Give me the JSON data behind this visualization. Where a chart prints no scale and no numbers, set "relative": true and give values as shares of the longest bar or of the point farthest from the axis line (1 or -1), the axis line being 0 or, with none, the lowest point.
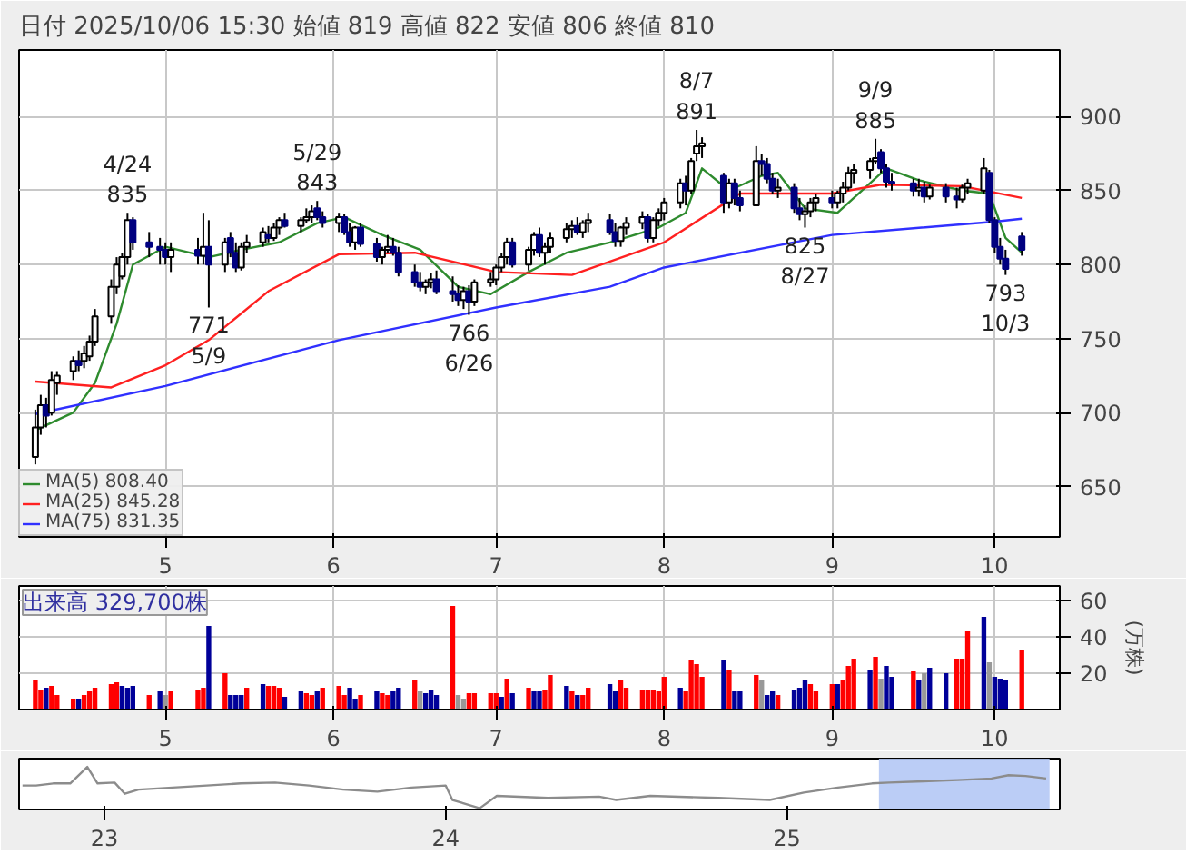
{
  "chart_data": [
    {
      "type": "candlestick",
      "title": "日付 2025/10/06 15:30 始値 819 高値 822 安値 806 終値 810",
      "x": [
        "2025-04-07",
        "2025-04-08",
        "2025-04-09",
        "2025-04-10",
        "2025-04-11",
        "2025-04-14",
        "2025-04-15",
        "2025-04-16",
        "2025-04-17",
        "2025-04-18",
        "2025-04-21",
        "2025-04-22",
        "2025-04-23",
        "2025-04-24",
        "2025-04-25",
        "2025-04-28",
        "2025-04-30",
        "2025-05-01",
        "2025-05-02",
        "2025-05-07",
        "2025-05-08",
        "2025-05-09",
        "2025-05-12",
        "2025-05-13",
        "2025-05-14",
        "2025-05-15",
        "2025-05-16",
        "2025-05-19",
        "2025-05-20",
        "2025-05-21",
        "2025-05-22",
        "2025-05-23",
        "2025-05-26",
        "2025-05-27",
        "2025-05-28",
        "2025-05-29",
        "2025-05-30",
        "2025-06-02",
        "2025-06-03",
        "2025-06-04",
        "2025-06-05",
        "2025-06-06",
        "2025-06-09",
        "2025-06-10",
        "2025-06-11",
        "2025-06-12",
        "2025-06-13",
        "2025-06-16",
        "2025-06-17",
        "2025-06-18",
        "2025-06-19",
        "2025-06-20",
        "2025-06-23",
        "2025-06-24",
        "2025-06-25",
        "2025-06-26",
        "2025-06-27",
        "2025-06-30",
        "2025-07-01",
        "2025-07-02",
        "2025-07-03",
        "2025-07-04",
        "2025-07-07",
        "2025-07-08",
        "2025-07-09",
        "2025-07-10",
        "2025-07-11",
        "2025-07-14",
        "2025-07-15",
        "2025-07-16",
        "2025-07-17",
        "2025-07-18",
        "2025-07-22",
        "2025-07-23",
        "2025-07-24",
        "2025-07-25",
        "2025-07-28",
        "2025-07-29",
        "2025-07-30",
        "2025-07-31",
        "2025-08-01",
        "2025-08-04",
        "2025-08-05",
        "2025-08-06",
        "2025-08-07",
        "2025-08-08",
        "2025-08-12",
        "2025-08-13",
        "2025-08-14",
        "2025-08-15",
        "2025-08-18",
        "2025-08-19",
        "2025-08-20",
        "2025-08-21",
        "2025-08-22",
        "2025-08-25",
        "2025-08-26",
        "2025-08-27",
        "2025-08-28",
        "2025-08-29",
        "2025-09-01",
        "2025-09-02",
        "2025-09-03",
        "2025-09-04",
        "2025-09-05",
        "2025-09-08",
        "2025-09-09",
        "2025-09-10",
        "2025-09-11",
        "2025-09-12",
        "2025-09-16",
        "2025-09-17",
        "2025-09-18",
        "2025-09-19",
        "2025-09-22",
        "2025-09-24",
        "2025-09-25",
        "2025-09-26",
        "2025-09-29",
        "2025-09-30",
        "2025-10-01",
        "2025-10-02",
        "2025-10-03",
        "2025-10-06"
      ],
      "ohlc": [
        [
          670,
          702,
          665,
          690
        ],
        [
          690,
          712,
          685,
          705
        ],
        [
          705,
          710,
          690,
          698
        ],
        [
          700,
          728,
          698,
          722
        ],
        [
          720,
          728,
          712,
          725
        ],
        [
          728,
          738,
          722,
          735
        ],
        [
          735,
          742,
          728,
          732
        ],
        [
          735,
          745,
          730,
          740
        ],
        [
          738,
          752,
          735,
          748
        ],
        [
          748,
          770,
          745,
          765
        ],
        [
          765,
          790,
          760,
          785
        ],
        [
          785,
          805,
          780,
          800
        ],
        [
          792,
          808,
          790,
          805
        ],
        [
          805,
          835,
          800,
          830
        ],
        [
          830,
          832,
          810,
          815
        ],
        [
          815,
          822,
          805,
          812
        ],
        [
          812,
          818,
          800,
          810
        ],
        [
          810,
          815,
          800,
          805
        ],
        [
          805,
          815,
          795,
          810
        ],
        [
          810,
          818,
          800,
          806
        ],
        [
          806,
          835,
          800,
          812
        ],
        [
          812,
          830,
          771,
          800
        ],
        [
          800,
          818,
          795,
          815
        ],
        [
          818,
          822,
          805,
          808
        ],
        [
          808,
          815,
          795,
          798
        ],
        [
          798,
          815,
          796,
          812
        ],
        [
          812,
          820,
          808,
          815
        ],
        [
          815,
          825,
          812,
          822
        ],
        [
          820,
          826,
          815,
          818
        ],
        [
          818,
          828,
          816,
          825
        ],
        [
          825,
          832,
          820,
          830
        ],
        [
          830,
          835,
          825,
          826
        ],
        [
          826,
          832,
          822,
          830
        ],
        [
          830,
          838,
          828,
          832
        ],
        [
          832,
          840,
          828,
          836
        ],
        [
          838,
          843,
          830,
          832
        ],
        [
          832,
          836,
          825,
          828
        ],
        [
          828,
          835,
          822,
          832
        ],
        [
          832,
          834,
          820,
          822
        ],
        [
          822,
          828,
          812,
          815
        ],
        [
          815,
          826,
          810,
          825
        ],
        [
          825,
          828,
          812,
          814
        ],
        [
          814,
          818,
          802,
          805
        ],
        [
          805,
          812,
          800,
          810
        ],
        [
          810,
          820,
          808,
          812
        ],
        [
          812,
          818,
          806,
          808
        ],
        [
          808,
          812,
          792,
          795
        ],
        [
          795,
          800,
          785,
          788
        ],
        [
          788,
          795,
          782,
          785
        ],
        [
          785,
          790,
          780,
          788
        ],
        [
          788,
          794,
          784,
          790
        ],
        [
          790,
          796,
          780,
          782
        ],
        [
          782,
          792,
          775,
          780
        ],
        [
          780,
          786,
          772,
          776
        ],
        [
          776,
          785,
          770,
          782
        ],
        [
          782,
          786,
          766,
          775
        ],
        [
          775,
          790,
          772,
          788
        ],
        [
          788,
          795,
          785,
          790
        ],
        [
          790,
          800,
          786,
          798
        ],
        [
          798,
          808,
          795,
          805
        ],
        [
          805,
          818,
          800,
          815
        ],
        [
          815,
          818,
          798,
          800
        ],
        [
          800,
          812,
          796,
          810
        ],
        [
          810,
          822,
          806,
          820
        ],
        [
          820,
          825,
          805,
          808
        ],
        [
          808,
          815,
          800,
          812
        ],
        [
          812,
          822,
          808,
          818
        ],
        [
          818,
          828,
          815,
          824
        ],
        [
          824,
          830,
          818,
          826
        ],
        [
          826,
          832,
          820,
          822
        ],
        [
          822,
          830,
          818,
          828
        ],
        [
          828,
          835,
          822,
          830
        ],
        [
          830,
          834,
          820,
          822
        ],
        [
          822,
          828,
          812,
          816
        ],
        [
          816,
          826,
          812,
          825
        ],
        [
          825,
          832,
          820,
          828
        ],
        [
          828,
          836,
          824,
          832
        ],
        [
          832,
          834,
          815,
          818
        ],
        [
          818,
          832,
          815,
          830
        ],
        [
          830,
          838,
          826,
          835
        ],
        [
          835,
          845,
          830,
          842
        ],
        [
          842,
          858,
          838,
          855
        ],
        [
          855,
          860,
          840,
          850
        ],
        [
          850,
          872,
          848,
          870
        ],
        [
          875,
          891,
          870,
          880
        ],
        [
          880,
          886,
          872,
          882
        ],
        [
          860,
          862,
          835,
          842
        ],
        [
          842,
          858,
          838,
          855
        ],
        [
          855,
          858,
          840,
          845
        ],
        [
          845,
          850,
          836,
          840
        ],
        [
          840,
          880,
          840,
          870
        ],
        [
          870,
          875,
          860,
          868
        ],
        [
          868,
          872,
          855,
          858
        ],
        [
          858,
          862,
          848,
          850
        ],
        [
          850,
          858,
          845,
          852
        ],
        [
          852,
          855,
          835,
          838
        ],
        [
          838,
          845,
          830,
          834
        ],
        [
          834,
          840,
          825,
          836
        ],
        [
          836,
          845,
          832,
          842
        ],
        [
          842,
          848,
          836,
          845
        ],
        [
          845,
          850,
          838,
          842
        ],
        [
          842,
          850,
          838,
          848
        ],
        [
          848,
          856,
          842,
          852
        ],
        [
          852,
          866,
          850,
          862
        ],
        [
          862,
          868,
          855,
          864
        ],
        [
          864,
          872,
          858,
          870
        ],
        [
          870,
          885,
          868,
          872
        ],
        [
          876,
          878,
          862,
          865
        ],
        [
          865,
          868,
          852,
          856
        ],
        [
          856,
          862,
          850,
          855
        ],
        [
          855,
          858,
          846,
          850
        ],
        [
          850,
          858,
          846,
          852
        ],
        [
          852,
          856,
          842,
          846
        ],
        [
          846,
          854,
          844,
          852
        ],
        [
          852,
          855,
          842,
          846
        ],
        [
          846,
          852,
          838,
          844
        ],
        [
          844,
          854,
          842,
          852
        ],
        [
          852,
          858,
          848,
          855
        ],
        [
          850,
          872,
          848,
          865
        ],
        [
          862,
          864,
          828,
          830
        ],
        [
          830,
          832,
          808,
          812
        ],
        [
          812,
          818,
          800,
          804
        ],
        [
          804,
          810,
          793,
          797
        ],
        [
          819,
          822,
          806,
          810
        ]
      ],
      "series": [
        {
          "type": "line",
          "name": "MA(5) 808.40",
          "color": "#2e8b2e",
          "x": [
            "2025-04-07",
            "2025-04-14",
            "2025-04-18",
            "2025-04-22",
            "2025-04-25",
            "2025-05-01",
            "2025-05-09",
            "2025-05-15",
            "2025-05-22",
            "2025-05-29",
            "2025-06-03",
            "2025-06-10",
            "2025-06-17",
            "2025-06-24",
            "2025-06-30",
            "2025-07-07",
            "2025-07-14",
            "2025-07-22",
            "2025-07-31",
            "2025-08-05",
            "2025-08-08",
            "2025-08-13",
            "2025-08-19",
            "2025-08-22",
            "2025-08-27",
            "2025-09-02",
            "2025-09-08",
            "2025-09-11",
            "2025-09-17",
            "2025-09-25",
            "2025-09-30",
            "2025-10-03",
            "2025-10-06"
          ],
          "values": [
            688,
            700,
            720,
            760,
            800,
            812,
            805,
            810,
            815,
            828,
            832,
            820,
            810,
            785,
            780,
            795,
            808,
            815,
            825,
            835,
            865,
            850,
            860,
            862,
            838,
            835,
            855,
            865,
            857,
            850,
            848,
            818,
            808
          ]
        },
        {
          "type": "line",
          "name": "MA(25) 845.28",
          "color": "#ff2020",
          "x": [
            "2025-04-07",
            "2025-04-21",
            "2025-05-01",
            "2025-05-09",
            "2025-05-20",
            "2025-06-02",
            "2025-06-16",
            "2025-07-01",
            "2025-07-15",
            "2025-08-01",
            "2025-08-15",
            "2025-09-01",
            "2025-09-10",
            "2025-09-25",
            "2025-10-06"
          ],
          "values": [
            721,
            717,
            732,
            749,
            782,
            807,
            808,
            795,
            793,
            815,
            848,
            848,
            854,
            853,
            845
          ]
        },
        {
          "type": "line",
          "name": "MA(75) 831.35",
          "color": "#3030ff",
          "x": [
            "2025-04-07",
            "2025-05-01",
            "2025-06-02",
            "2025-07-01",
            "2025-07-22",
            "2025-08-01",
            "2025-09-01",
            "2025-10-01",
            "2025-10-06"
          ],
          "values": [
            699,
            718,
            749,
            771,
            785,
            798,
            820,
            829,
            831
          ]
        }
      ],
      "annotations": [
        {
          "text": "4/24\n835",
          "x": "2025-04-24",
          "y": 835
        },
        {
          "text": "771\n5/9",
          "x": "2025-05-09",
          "y": 771
        },
        {
          "text": "5/29\n843",
          "x": "2025-05-29",
          "y": 843
        },
        {
          "text": "766\n6/26",
          "x": "2025-06-26",
          "y": 766
        },
        {
          "text": "8/7\n891",
          "x": "2025-08-07",
          "y": 891
        },
        {
          "text": "825\n8/27",
          "x": "2025-08-27",
          "y": 825
        },
        {
          "text": "9/9\n885",
          "x": "2025-09-09",
          "y": 885
        },
        {
          "text": "793\n10/3",
          "x": "2025-10-03",
          "y": 793
        }
      ],
      "xlim": [
        "2025-04-04",
        "2025-10-13"
      ],
      "xticks": [
        {
          "value": "2025-05-01",
          "label": "5"
        },
        {
          "value": "2025-06-01",
          "label": "6"
        },
        {
          "value": "2025-07-01",
          "label": "7"
        },
        {
          "value": "2025-08-01",
          "label": "8"
        },
        {
          "value": "2025-09-01",
          "label": "9"
        },
        {
          "value": "2025-10-01",
          "label": "10"
        }
      ],
      "ylim": [
        616,
        945
      ],
      "yticks": [
        650,
        700,
        750,
        800,
        850,
        900
      ],
      "grid": true,
      "legend": "bottom left"
    },
    {
      "type": "bar",
      "title": "出来高 329,700株",
      "ylabel": "(万株)",
      "x": [
        "2025-04-07",
        "2025-04-08",
        "2025-04-09",
        "2025-04-10",
        "2025-04-11",
        "2025-04-14",
        "2025-04-15",
        "2025-04-16",
        "2025-04-17",
        "2025-04-18",
        "2025-04-21",
        "2025-04-22",
        "2025-04-23",
        "2025-04-24",
        "2025-04-25",
        "2025-04-28",
        "2025-04-30",
        "2025-05-01",
        "2025-05-02",
        "2025-05-07",
        "2025-05-08",
        "2025-05-09",
        "2025-05-12",
        "2025-05-13",
        "2025-05-14",
        "2025-05-15",
        "2025-05-16",
        "2025-05-19",
        "2025-05-20",
        "2025-05-21",
        "2025-05-22",
        "2025-05-23",
        "2025-05-26",
        "2025-05-27",
        "2025-05-28",
        "2025-05-29",
        "2025-05-30",
        "2025-06-02",
        "2025-06-03",
        "2025-06-04",
        "2025-06-05",
        "2025-06-06",
        "2025-06-09",
        "2025-06-10",
        "2025-06-11",
        "2025-06-12",
        "2025-06-13",
        "2025-06-16",
        "2025-06-17",
        "2025-06-18",
        "2025-06-19",
        "2025-06-20",
        "2025-06-23",
        "2025-06-24",
        "2025-06-25",
        "2025-06-26",
        "2025-06-27",
        "2025-06-30",
        "2025-07-01",
        "2025-07-02",
        "2025-07-03",
        "2025-07-04",
        "2025-07-07",
        "2025-07-08",
        "2025-07-09",
        "2025-07-10",
        "2025-07-11",
        "2025-07-14",
        "2025-07-15",
        "2025-07-16",
        "2025-07-17",
        "2025-07-18",
        "2025-07-22",
        "2025-07-23",
        "2025-07-24",
        "2025-07-25",
        "2025-07-28",
        "2025-07-29",
        "2025-07-30",
        "2025-07-31",
        "2025-08-01",
        "2025-08-04",
        "2025-08-05",
        "2025-08-06",
        "2025-08-07",
        "2025-08-08",
        "2025-08-12",
        "2025-08-13",
        "2025-08-14",
        "2025-08-15",
        "2025-08-18",
        "2025-08-19",
        "2025-08-20",
        "2025-08-21",
        "2025-08-22",
        "2025-08-25",
        "2025-08-26",
        "2025-08-27",
        "2025-08-28",
        "2025-08-29",
        "2025-09-01",
        "2025-09-02",
        "2025-09-03",
        "2025-09-04",
        "2025-09-05",
        "2025-09-08",
        "2025-09-09",
        "2025-09-10",
        "2025-09-11",
        "2025-09-12",
        "2025-09-16",
        "2025-09-17",
        "2025-09-18",
        "2025-09-19",
        "2025-09-22",
        "2025-09-24",
        "2025-09-25",
        "2025-09-26",
        "2025-09-29",
        "2025-09-30",
        "2025-10-01",
        "2025-10-02",
        "2025-10-03",
        "2025-10-06"
      ],
      "values": [
        16,
        11,
        12,
        13,
        8,
        6,
        6,
        8,
        10,
        12,
        14,
        15,
        13,
        12,
        13,
        8,
        10,
        8,
        10,
        11,
        12,
        46,
        20,
        8,
        8,
        8,
        12,
        14,
        13,
        13,
        12,
        7,
        10,
        9,
        8,
        10,
        12,
        13,
        8,
        12,
        6,
        8,
        10,
        9,
        8,
        10,
        12,
        16,
        10,
        9,
        11,
        8,
        57,
        8,
        6,
        9,
        9,
        9,
        9,
        7,
        17,
        9,
        12,
        10,
        10,
        11,
        19,
        13,
        10,
        8,
        8,
        12,
        14,
        10,
        16,
        12,
        11,
        11,
        11,
        10,
        18,
        12,
        10,
        27,
        25,
        18,
        27,
        22,
        10,
        10,
        19,
        16,
        8,
        10,
        8,
        11,
        12,
        16,
        14,
        10,
        14,
        14,
        16,
        24,
        28,
        22,
        29,
        17,
        24,
        18,
        21,
        16,
        20,
        23,
        20,
        28,
        28,
        43,
        51,
        26,
        18,
        17,
        16,
        33
      ],
      "colors": [
        "#ff0000",
        "#ff0000",
        "#000099",
        "#ff0000",
        "#ff0000",
        "#ff0000",
        "#000099",
        "#ff0000",
        "#ff0000",
        "#ff0000",
        "#ff0000",
        "#ff0000",
        "#000099",
        "#000099",
        "#000099",
        "#ff0000",
        "#000099",
        "#999999",
        "#ff0000",
        "#ff0000",
        "#ff0000",
        "#000099",
        "#ff0000",
        "#000099",
        "#000099",
        "#000099",
        "#ff0000",
        "#000099",
        "#ff0000",
        "#ff0000",
        "#ff0000",
        "#000099",
        "#000099",
        "#ff0000",
        "#ff0000",
        "#000099",
        "#ff0000",
        "#ff0000",
        "#ff0000",
        "#000099",
        "#000099",
        "#ff0000",
        "#000099",
        "#ff0000",
        "#ff0000",
        "#000099",
        "#000099",
        "#ff0000",
        "#999999",
        "#000099",
        "#000099",
        "#000099",
        "#ff0000",
        "#999999",
        "#999999",
        "#ff0000",
        "#ff0000",
        "#ff0000",
        "#ff0000",
        "#000099",
        "#ff0000",
        "#000099",
        "#ff0000",
        "#000099",
        "#000099",
        "#ff0000",
        "#ff0000",
        "#000099",
        "#ff0000",
        "#000099",
        "#ff0000",
        "#ff0000",
        "#000099",
        "#000099",
        "#ff0000",
        "#ff0000",
        "#ff0000",
        "#ff0000",
        "#ff0000",
        "#ff0000",
        "#ff0000",
        "#000099",
        "#ff0000",
        "#ff0000",
        "#ff0000",
        "#ff0000",
        "#000099",
        "#ff0000",
        "#000099",
        "#000099",
        "#ff0000",
        "#999999",
        "#000099",
        "#000099",
        "#ff0000",
        "#000099",
        "#000099",
        "#000099",
        "#ff0000",
        "#ff0000",
        "#ff0000",
        "#000099",
        "#ff0000",
        "#ff0000",
        "#ff0000",
        "#000099",
        "#ff0000",
        "#999999",
        "#000099",
        "#000099",
        "#ff0000",
        "#000099",
        "#999999",
        "#000099",
        "#000099",
        "#ff0000",
        "#ff0000",
        "#ff0000",
        "#000099",
        "#999999",
        "#000099",
        "#000099",
        "#000099",
        "#ff0000"
      ],
      "xlim": [
        "2025-04-04",
        "2025-10-13"
      ],
      "xticks": [
        {
          "value": "2025-05-01",
          "label": "5"
        },
        {
          "value": "2025-06-01",
          "label": "6"
        },
        {
          "value": "2025-07-01",
          "label": "7"
        },
        {
          "value": "2025-08-01",
          "label": "8"
        },
        {
          "value": "2025-09-01",
          "label": "9"
        },
        {
          "value": "2025-10-01",
          "label": "10"
        }
      ],
      "ylim": [
        0,
        68
      ],
      "yticks": [
        20,
        40,
        60
      ],
      "grid": true
    },
    {
      "type": "line",
      "relative": true,
      "x": [
        2022.76,
        2022.8,
        2022.85,
        2022.9,
        2022.95,
        2022.98,
        2023.03,
        2023.06,
        2023.1,
        2023.2,
        2023.3,
        2023.4,
        2023.5,
        2023.6,
        2023.7,
        2023.8,
        2023.9,
        2024.0,
        2024.02,
        2024.1,
        2024.15,
        2024.3,
        2024.45,
        2024.5,
        2024.6,
        2024.8,
        2024.95,
        2025.05,
        2025.15,
        2025.25,
        2025.3,
        2025.4,
        2025.5,
        2025.6,
        2025.65,
        2025.7,
        2025.76
      ],
      "series": [
        {
          "color": "#8c8c8c",
          "values": [
            0.55,
            0.55,
            0.6,
            0.6,
            1.0,
            0.6,
            0.62,
            0.35,
            0.45,
            0.5,
            0.55,
            0.6,
            0.62,
            0.55,
            0.45,
            0.4,
            0.5,
            0.55,
            0.2,
            0,
            0.3,
            0.25,
            0.28,
            0.2,
            0.3,
            0.25,
            0.2,
            0.38,
            0.5,
            0.6,
            0.62,
            0.65,
            0.68,
            0.72,
            0.8,
            0.78,
            0.72
          ]
        }
      ],
      "xlim": [
        2022.75,
        2025.8
      ],
      "xticks": [
        {
          "value": 2023,
          "label": "23"
        },
        {
          "value": 2024,
          "label": "24"
        },
        {
          "value": 2025,
          "label": "25"
        }
      ],
      "bands": [
        {
          "axis": "x",
          "from": 2025.27,
          "to": 2025.77,
          "color": "#b4c8f5"
        }
      ]
    }
  ]
}
